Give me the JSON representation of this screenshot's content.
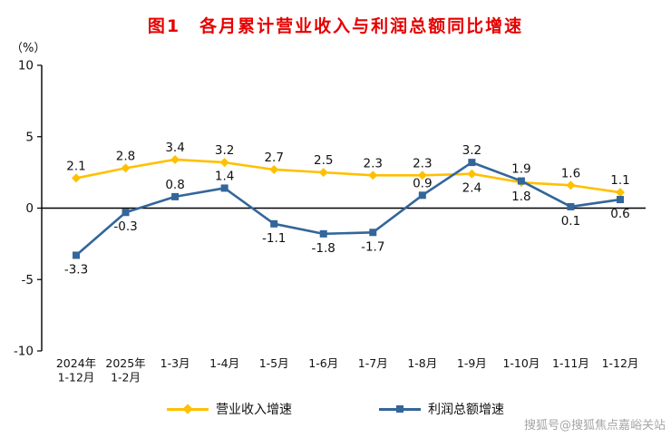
{
  "colors": {
    "title": "#E60000",
    "axis": "#000000",
    "text": "#111111",
    "watermark": "#A6A6A6"
  },
  "watermark": "搜狐号@搜狐焦点嘉峪关站",
  "chart_data": {
    "type": "line",
    "title": "图1　各月累计营业收入与利润总额同比增速",
    "ylabel": "（%）",
    "xlabel": "",
    "ylim": [
      -10,
      10
    ],
    "yticks": [
      10,
      5,
      0,
      -5,
      -10
    ],
    "grid": false,
    "legend_position": "bottom",
    "categories": [
      "2024年\n1-12月",
      "2025年\n1-2月",
      "1-3月",
      "1-4月",
      "1-5月",
      "1-6月",
      "1-7月",
      "1-8月",
      "1-9月",
      "1-10月",
      "1-11月",
      "1-12月"
    ],
    "series": [
      {
        "name": "营业收入增速",
        "color": "#FFC000",
        "marker": "diamond",
        "values": [
          2.1,
          2.8,
          3.4,
          3.2,
          2.7,
          2.5,
          2.3,
          2.3,
          2.4,
          1.8,
          1.6,
          1.1
        ],
        "label_positions": [
          "above",
          "above",
          "above",
          "above",
          "above",
          "above",
          "above",
          "above",
          "below",
          "below",
          "above",
          "above"
        ]
      },
      {
        "name": "利润总额增速",
        "color": "#33669A",
        "marker": "square",
        "values": [
          -3.3,
          -0.3,
          0.8,
          1.4,
          -1.1,
          -1.8,
          -1.7,
          0.9,
          3.2,
          1.9,
          0.1,
          0.6
        ],
        "label_positions": [
          "below",
          "below",
          "above",
          "above",
          "below",
          "below",
          "below",
          "above",
          "above",
          "above",
          "below",
          "below"
        ]
      }
    ]
  }
}
